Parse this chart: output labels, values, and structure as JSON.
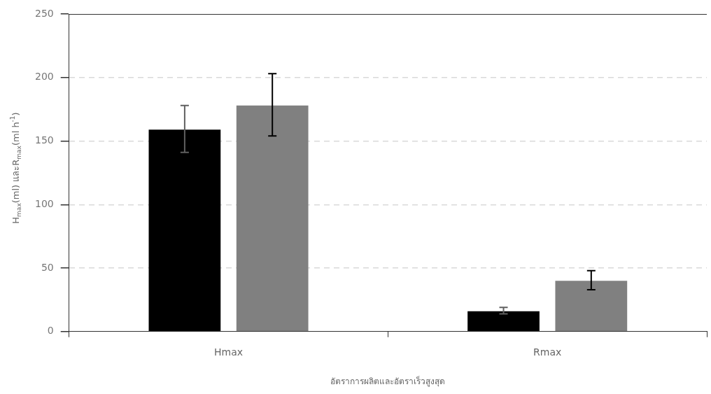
{
  "chart_data": {
    "type": "bar",
    "xlabel": "อัตราการผลิตและอัตราเร็วสูงสุด",
    "ylabel": "H$_{max}$(ml) และR$_{max}$(ml h$^{-1}$)",
    "categories": [
      "Hmax",
      "Rmax"
    ],
    "series": [
      {
        "color": "#000000",
        "values": [
          159,
          16
        ],
        "errors": [
          [
            141,
            178
          ],
          [
            14,
            19
          ]
        ]
      },
      {
        "color": "#808080",
        "values": [
          178,
          40
        ],
        "errors": [
          [
            154,
            203
          ],
          [
            33,
            48
          ]
        ]
      }
    ],
    "ylim": [
      0,
      250
    ],
    "yticks": [
      0,
      50,
      100,
      150,
      200,
      250
    ],
    "grid": "y",
    "legend": false
  }
}
